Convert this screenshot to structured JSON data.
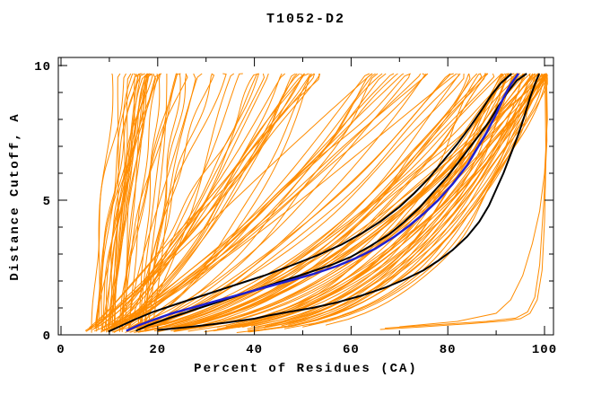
{
  "title": "T1052-D2",
  "axes": {
    "xlabel": "Percent of Residues (CA)",
    "ylabel": "Distance Cutoff, A",
    "xticks": [
      0,
      20,
      40,
      60,
      80,
      100
    ],
    "xtick_labels": [
      "0",
      "20",
      "40",
      "60",
      "80",
      "100"
    ],
    "xminor": [
      10,
      30,
      50,
      70,
      90
    ],
    "yticks": [
      0,
      5,
      10
    ],
    "ytick_labels": [
      "0",
      "5",
      "10"
    ],
    "yminor": [
      1,
      2,
      3,
      4,
      6,
      7,
      8,
      9
    ],
    "xlim": [
      0,
      102
    ],
    "ylim": [
      0,
      10.3
    ]
  },
  "colors": {
    "ensemble": "#ff8c00",
    "highlight": "#2020d0",
    "reference": "#000000",
    "frame": "#000000",
    "background": "#ffffff"
  },
  "chart_data": {
    "type": "line",
    "title": "T1052-D2",
    "xlabel": "Percent of Residues (CA)",
    "ylabel": "Distance Cutoff, A",
    "xlim": [
      0,
      102
    ],
    "ylim": [
      0,
      10.3
    ],
    "grid": false,
    "legend": false,
    "series": [
      {
        "name": "model-ensemble-orange",
        "color": "#ff8c00",
        "style": "procedural",
        "count": 143,
        "seed": 11,
        "ymax": 9.7,
        "groups": [
          {
            "n": 26,
            "x0": [
              6.5,
              13
            ],
            "span": [
              1.5,
              14
            ],
            "a": [
              0.9,
              2.0
            ]
          },
          {
            "n": 14,
            "x0": [
              13,
              19
            ],
            "span": [
              3,
              22
            ],
            "a": [
              0.8,
              1.6
            ]
          },
          {
            "n": 40,
            "x0": [
              3,
              12
            ],
            "span": [
              35,
              75
            ],
            "a": [
              0.5,
              1.1
            ]
          },
          {
            "n": 55,
            "x0": [
              3,
              13
            ],
            "span": [
              78,
              95
            ],
            "a": [
              0.22,
              0.62
            ]
          },
          {
            "n": 8,
            "x0": [
              4,
              10
            ],
            "span": [
              88,
              96.5
            ],
            "a": [
              0.16,
              0.3
            ]
          }
        ]
      },
      {
        "name": "outlier-orange-1",
        "color": "#ff8c00",
        "width": 1,
        "points": [
          [
            66,
            0.2
          ],
          [
            75,
            0.3
          ],
          [
            85,
            0.42
          ],
          [
            92,
            0.52
          ],
          [
            95,
            0.6
          ],
          [
            97,
            0.8
          ],
          [
            98.5,
            1.3
          ],
          [
            99.5,
            2.4
          ],
          [
            100,
            4.2
          ],
          [
            100.3,
            6.5
          ],
          [
            100.1,
            9.7
          ]
        ]
      },
      {
        "name": "outlier-orange-2",
        "color": "#ff8c00",
        "width": 1,
        "points": [
          [
            67,
            0.25
          ],
          [
            78,
            0.38
          ],
          [
            88,
            0.5
          ],
          [
            94,
            0.62
          ],
          [
            96.5,
            0.85
          ],
          [
            98,
            1.4
          ],
          [
            99,
            2.6
          ],
          [
            99.8,
            4.8
          ],
          [
            100.5,
            7.2
          ],
          [
            100.3,
            9.7
          ]
        ]
      },
      {
        "name": "outlier-orange-3",
        "color": "#ff8c00",
        "width": 1,
        "points": [
          [
            70,
            0.3
          ],
          [
            82,
            0.5
          ],
          [
            90,
            0.8
          ],
          [
            93,
            1.3
          ],
          [
            95.5,
            2.2
          ],
          [
            97.5,
            3.4
          ],
          [
            99,
            4.6
          ],
          [
            100,
            6.0
          ],
          [
            100.6,
            8.0
          ],
          [
            100.4,
            9.7
          ]
        ]
      },
      {
        "name": "reference-black-1",
        "color": "#000000",
        "width": 2,
        "points": [
          [
            9.8,
            0.12
          ],
          [
            12,
            0.3
          ],
          [
            15,
            0.55
          ],
          [
            19,
            0.85
          ],
          [
            24,
            1.15
          ],
          [
            30,
            1.5
          ],
          [
            36,
            1.85
          ],
          [
            42,
            2.2
          ],
          [
            48,
            2.6
          ],
          [
            53,
            2.95
          ],
          [
            58,
            3.35
          ],
          [
            62,
            3.75
          ],
          [
            66,
            4.2
          ],
          [
            70,
            4.75
          ],
          [
            73,
            5.25
          ],
          [
            76,
            5.8
          ],
          [
            79,
            6.45
          ],
          [
            82,
            7.1
          ],
          [
            84.5,
            7.7
          ],
          [
            87,
            8.35
          ],
          [
            89,
            8.9
          ],
          [
            91,
            9.35
          ],
          [
            93.2,
            9.7
          ]
        ]
      },
      {
        "name": "reference-black-2",
        "color": "#000000",
        "width": 2,
        "points": [
          [
            15.5,
            0.15
          ],
          [
            18,
            0.35
          ],
          [
            22,
            0.6
          ],
          [
            27,
            0.9
          ],
          [
            33,
            1.25
          ],
          [
            39,
            1.6
          ],
          [
            45,
            1.95
          ],
          [
            51,
            2.3
          ],
          [
            56,
            2.6
          ],
          [
            60,
            2.9
          ],
          [
            64,
            3.3
          ],
          [
            68,
            3.75
          ],
          [
            71,
            4.2
          ],
          [
            74,
            4.7
          ],
          [
            77,
            5.3
          ],
          [
            80,
            5.9
          ],
          [
            83,
            6.6
          ],
          [
            86,
            7.3
          ],
          [
            88.5,
            7.9
          ],
          [
            90.5,
            8.5
          ],
          [
            92.5,
            9.05
          ],
          [
            94.3,
            9.45
          ],
          [
            96.3,
            9.7
          ]
        ]
      },
      {
        "name": "reference-black-3",
        "color": "#000000",
        "width": 2,
        "points": [
          [
            20,
            0.18
          ],
          [
            27,
            0.3
          ],
          [
            34,
            0.45
          ],
          [
            40,
            0.6
          ],
          [
            43,
            0.72
          ],
          [
            47,
            0.85
          ],
          [
            52,
            1.0
          ],
          [
            57,
            1.2
          ],
          [
            62,
            1.45
          ],
          [
            67,
            1.75
          ],
          [
            71,
            2.05
          ],
          [
            75,
            2.4
          ],
          [
            78,
            2.75
          ],
          [
            81,
            3.15
          ],
          [
            84,
            3.65
          ],
          [
            86.5,
            4.2
          ],
          [
            88.5,
            4.8
          ],
          [
            90,
            5.4
          ],
          [
            91.5,
            6.0
          ],
          [
            93,
            6.7
          ],
          [
            94.5,
            7.4
          ],
          [
            95.8,
            8.1
          ],
          [
            97,
            8.8
          ],
          [
            98,
            9.3
          ],
          [
            98.9,
            9.7
          ]
        ]
      },
      {
        "name": "highlight-blue",
        "color": "#2020d0",
        "width": 2.5,
        "points": [
          [
            13.5,
            0.15
          ],
          [
            16,
            0.35
          ],
          [
            19,
            0.55
          ],
          [
            23,
            0.8
          ],
          [
            28,
            1.05
          ],
          [
            34,
            1.35
          ],
          [
            40,
            1.65
          ],
          [
            46,
            1.95
          ],
          [
            52,
            2.25
          ],
          [
            57,
            2.55
          ],
          [
            61,
            2.85
          ],
          [
            65,
            3.2
          ],
          [
            69,
            3.65
          ],
          [
            72,
            4.05
          ],
          [
            75,
            4.5
          ],
          [
            78,
            5.0
          ],
          [
            81,
            5.6
          ],
          [
            84,
            6.3
          ],
          [
            86,
            6.9
          ],
          [
            88,
            7.5
          ],
          [
            90,
            8.2
          ],
          [
            91.5,
            8.8
          ],
          [
            93,
            9.3
          ],
          [
            94.6,
            9.7
          ]
        ]
      }
    ]
  }
}
